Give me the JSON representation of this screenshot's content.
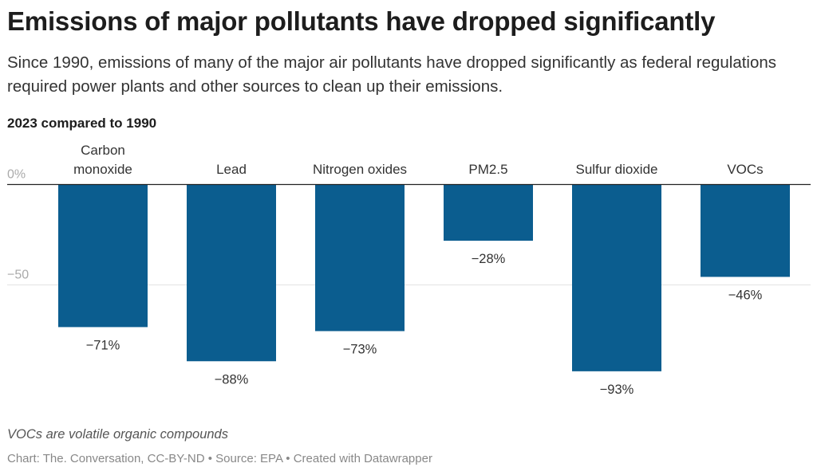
{
  "title": "Emissions of major pollutants have dropped significantly",
  "subtitle": "Since 1990, emissions of many of the major air pollutants have dropped significantly as federal regulations required power plants and other sources to clean up their emissions.",
  "description": "2023 compared to 1990",
  "note": "VOCs are volatile organic compounds",
  "credit": "Chart: The. Conversation, CC-BY-ND • Source: EPA • Created with Datawrapper",
  "chart_data": {
    "type": "bar",
    "categories": [
      [
        "Carbon",
        "monoxide"
      ],
      [
        "Lead"
      ],
      [
        "Nitrogen oxides"
      ],
      [
        "PM2.5"
      ],
      [
        "Sulfur dioxide"
      ],
      [
        "VOCs"
      ]
    ],
    "values": [
      -71,
      -88,
      -73,
      -28,
      -93,
      -46
    ],
    "value_labels": [
      "−71%",
      "−88%",
      "−73%",
      "−28%",
      "−93%",
      "−46%"
    ],
    "ytick_labels": [
      "0%",
      "−50"
    ],
    "yticks": [
      0,
      -50
    ],
    "ylim": [
      -100,
      0
    ],
    "grid": true,
    "bar_color": "#0b5d8f"
  }
}
